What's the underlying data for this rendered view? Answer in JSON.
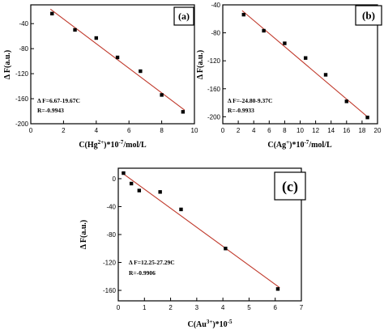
{
  "chart_data": [
    {
      "type": "scatter",
      "panel_label": "(a)",
      "x": [
        1.3,
        2.7,
        4.0,
        5.3,
        6.7,
        8.0,
        9.3
      ],
      "y": [
        -24,
        -50,
        -63,
        -94,
        -116,
        -154,
        -181
      ],
      "xlabel": "C(Hg2+)*10^-7/mol/L",
      "xlabel_main": "C(Hg",
      "xlabel_sup": "2+",
      "xlabel_mid": ")*10",
      "xlabel_sup2": "-7",
      "xlabel_tail": "/mol/L",
      "ylabel": "Δ F(a.u.)",
      "xlim": [
        0,
        10
      ],
      "ylim": [
        -200,
        -10
      ],
      "xticks": [
        0,
        2,
        4,
        6,
        8,
        10
      ],
      "yticks": [
        -200,
        -160,
        -120,
        -80,
        -40
      ],
      "fit": {
        "intercept": 6.67,
        "slope": -19.67
      },
      "equation": "Δ F=6.67-19.67C",
      "r_text": "R=-0.9943",
      "grid": false,
      "line_color": "#c0392b"
    },
    {
      "type": "scatter",
      "panel_label": "(b)",
      "x": [
        2.7,
        5.3,
        8.0,
        10.7,
        13.3,
        16.0,
        18.7
      ],
      "y": [
        -54,
        -77,
        -95,
        -116,
        -140,
        -178,
        -201
      ],
      "xlabel": "C(Ag+)*10^-7/mol/L",
      "xlabel_main": "C(Ag",
      "xlabel_sup": "+",
      "xlabel_mid": ")*10",
      "xlabel_sup2": "-7",
      "xlabel_tail": "/mol/L",
      "ylabel": "Δ F(a.u.)",
      "xlim": [
        0,
        20
      ],
      "ylim": [
        -210,
        -40
      ],
      "xticks": [
        0,
        2,
        4,
        6,
        8,
        10,
        12,
        14,
        16,
        18,
        20
      ],
      "yticks": [
        -200,
        -160,
        -120,
        -80,
        -40
      ],
      "fit": {
        "intercept": -24.8,
        "slope": -9.37
      },
      "equation": "Δ F=-24.80-9.37C",
      "r_text": "R=-0.9933",
      "grid": false,
      "line_color": "#c0392b"
    },
    {
      "type": "scatter",
      "panel_label": "(c)",
      "x": [
        0.2,
        0.5,
        0.8,
        1.6,
        2.4,
        4.1,
        6.1
      ],
      "y": [
        8,
        -7,
        -17,
        -19,
        -44,
        -100,
        -158
      ],
      "xlabel": "C(Au3+)*10^-5",
      "xlabel_main": "C(Au",
      "xlabel_sup": "3+",
      "xlabel_mid": ")*10",
      "xlabel_sup2": "-5",
      "xlabel_tail": "",
      "ylabel": "Δ F(a.u.)",
      "xlim": [
        0,
        7
      ],
      "ylim": [
        -175,
        15
      ],
      "xticks": [
        0,
        1,
        2,
        3,
        4,
        5,
        6,
        7
      ],
      "yticks": [
        -160,
        -120,
        -80,
        -40,
        0
      ],
      "fit": {
        "intercept": 12.25,
        "slope": -27.29
      },
      "equation": "Δ F=12.25-27.29C",
      "r_text": "R=-0.9906",
      "grid": false,
      "line_color": "#c0392b"
    }
  ]
}
